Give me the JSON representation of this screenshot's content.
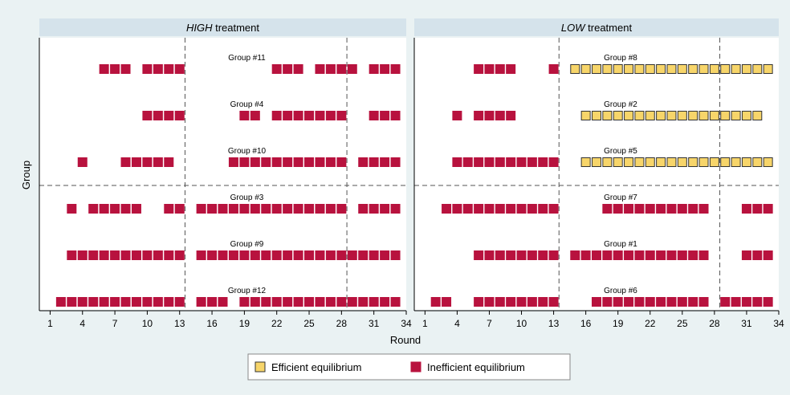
{
  "chart_data": {
    "type": "scatter",
    "xlabel": "Round",
    "ylabel": "Group",
    "xlim": [
      0,
      34
    ],
    "xticks": [
      1,
      4,
      7,
      10,
      13,
      16,
      19,
      22,
      25,
      28,
      31,
      34
    ],
    "vlines": [
      13.5,
      28.5
    ],
    "series": [
      {
        "name": "Efficient equilibrium",
        "color": "#f7d56a"
      },
      {
        "name": "Inefficient equilibrium",
        "color": "#b8123e"
      }
    ],
    "panels": [
      {
        "title_emphasis": "HIGH",
        "title_rest": "treatment",
        "groups": [
          {
            "label": "Group #11",
            "efficient": [],
            "inefficient": [
              6,
              7,
              8,
              10,
              11,
              12,
              13,
              22,
              23,
              24,
              26,
              27,
              28,
              29,
              31,
              32,
              33
            ]
          },
          {
            "label": "Group #4",
            "efficient": [],
            "inefficient": [
              10,
              11,
              12,
              13,
              19,
              20,
              22,
              23,
              24,
              25,
              26,
              27,
              28,
              31,
              32,
              33
            ]
          },
          {
            "label": "Group #10",
            "efficient": [],
            "inefficient": [
              4,
              8,
              9,
              10,
              11,
              12,
              18,
              19,
              20,
              21,
              22,
              23,
              24,
              25,
              26,
              27,
              28,
              30,
              31,
              32,
              33
            ]
          },
          {
            "label": "Group #3",
            "efficient": [],
            "inefficient": [
              3,
              5,
              6,
              7,
              8,
              9,
              12,
              13,
              15,
              16,
              17,
              18,
              19,
              20,
              21,
              22,
              23,
              24,
              25,
              26,
              27,
              28,
              30,
              31,
              32,
              33
            ]
          },
          {
            "label": "Group #9",
            "efficient": [],
            "inefficient": [
              3,
              4,
              5,
              6,
              7,
              8,
              9,
              10,
              11,
              12,
              13,
              15,
              16,
              17,
              18,
              19,
              20,
              21,
              22,
              23,
              24,
              25,
              26,
              27,
              28,
              29,
              30,
              31,
              32,
              33
            ]
          },
          {
            "label": "Group #12",
            "efficient": [],
            "inefficient": [
              2,
              3,
              4,
              5,
              6,
              7,
              8,
              9,
              10,
              11,
              12,
              13,
              15,
              16,
              17,
              19,
              20,
              21,
              22,
              23,
              24,
              25,
              26,
              27,
              28,
              29,
              30,
              31,
              32,
              33
            ]
          }
        ]
      },
      {
        "title_emphasis": "LOW",
        "title_rest": "treatment",
        "groups": [
          {
            "label": "Group #8",
            "efficient": [
              15,
              16,
              17,
              18,
              19,
              20,
              21,
              22,
              23,
              24,
              25,
              26,
              27,
              28,
              29,
              30,
              31,
              32,
              33
            ],
            "inefficient": [
              6,
              7,
              8,
              9,
              13
            ]
          },
          {
            "label": "Group #2",
            "efficient": [
              16,
              17,
              18,
              19,
              20,
              21,
              22,
              23,
              24,
              25,
              26,
              27,
              28,
              29,
              30,
              31,
              32
            ],
            "inefficient": [
              4,
              6,
              7,
              8,
              9
            ]
          },
          {
            "label": "Group #5",
            "efficient": [
              16,
              17,
              18,
              19,
              20,
              21,
              22,
              23,
              24,
              25,
              26,
              27,
              28,
              29,
              30,
              31,
              32,
              33
            ],
            "inefficient": [
              4,
              5,
              6,
              7,
              8,
              9,
              10,
              11,
              12,
              13
            ]
          },
          {
            "label": "Group #7",
            "efficient": [],
            "inefficient": [
              3,
              4,
              5,
              6,
              7,
              8,
              9,
              10,
              11,
              12,
              13,
              18,
              19,
              20,
              21,
              22,
              23,
              24,
              25,
              26,
              27,
              31,
              32,
              33
            ]
          },
          {
            "label": "Group #1",
            "efficient": [],
            "inefficient": [
              6,
              7,
              8,
              9,
              10,
              11,
              12,
              13,
              15,
              16,
              17,
              18,
              19,
              20,
              21,
              22,
              23,
              24,
              25,
              26,
              27,
              31,
              32,
              33
            ]
          },
          {
            "label": "Group #6",
            "efficient": [],
            "inefficient": [
              2,
              3,
              6,
              7,
              8,
              9,
              10,
              11,
              12,
              13,
              17,
              18,
              19,
              20,
              21,
              22,
              23,
              24,
              25,
              26,
              27,
              29,
              30,
              31,
              32,
              33
            ]
          }
        ]
      }
    ]
  }
}
